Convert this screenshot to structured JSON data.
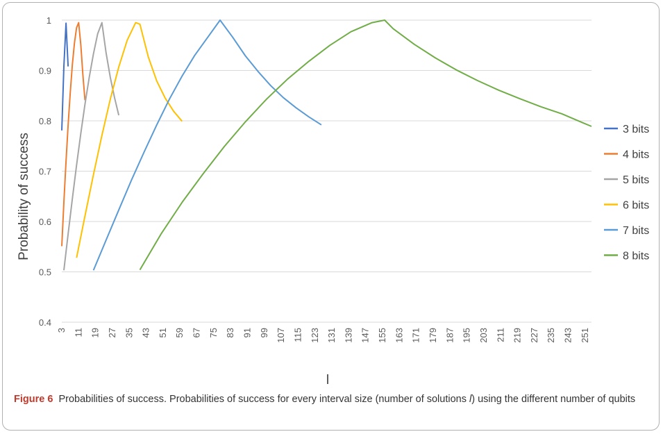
{
  "chart_data": {
    "type": "line",
    "xlabel": "l",
    "ylabel": "Probability of success",
    "ylim": [
      0.4,
      1.0
    ],
    "yticks": [
      0.4,
      0.5,
      0.6,
      0.7,
      0.8,
      0.9,
      1
    ],
    "xlim": [
      3,
      254
    ],
    "xticks": [
      3,
      11,
      19,
      27,
      35,
      43,
      51,
      59,
      67,
      75,
      83,
      91,
      99,
      107,
      115,
      123,
      131,
      139,
      147,
      155,
      163,
      171,
      179,
      187,
      195,
      203,
      211,
      219,
      227,
      235,
      243,
      251
    ],
    "grid": true,
    "legend_position": "right",
    "series": [
      {
        "name": "3 bits",
        "color": "#4472C4",
        "x": [
          3,
          4,
          5,
          6
        ],
        "y": [
          0.781,
          0.908,
          0.994,
          0.908
        ]
      },
      {
        "name": "4 bits",
        "color": "#ED7D31",
        "x": [
          3,
          4,
          5,
          6,
          7,
          8,
          9,
          10,
          11,
          12,
          13,
          14
        ],
        "y": [
          0.551,
          0.638,
          0.719,
          0.791,
          0.856,
          0.911,
          0.954,
          0.985,
          0.995,
          0.951,
          0.891,
          0.841
        ]
      },
      {
        "name": "5 bits",
        "color": "#A5A5A5",
        "x": [
          4,
          6,
          8,
          10,
          12,
          14,
          16,
          18,
          20,
          22,
          24,
          26,
          28,
          30
        ],
        "y": [
          0.503,
          0.575,
          0.645,
          0.712,
          0.775,
          0.833,
          0.886,
          0.933,
          0.973,
          0.995,
          0.935,
          0.886,
          0.846,
          0.811
        ]
      },
      {
        "name": "6 bits",
        "color": "#FFC000",
        "x": [
          10,
          14,
          18,
          22,
          26,
          30,
          34,
          38,
          40,
          44,
          48,
          52,
          56,
          60
        ],
        "y": [
          0.528,
          0.611,
          0.693,
          0.771,
          0.843,
          0.907,
          0.96,
          0.995,
          0.992,
          0.927,
          0.879,
          0.845,
          0.819,
          0.799
        ]
      },
      {
        "name": "7 bits",
        "color": "#5B9BD5",
        "x": [
          18,
          24,
          30,
          36,
          42,
          48,
          54,
          60,
          66,
          72,
          78,
          84,
          90,
          96,
          102,
          108,
          114,
          120,
          126
        ],
        "y": [
          0.503,
          0.563,
          0.623,
          0.682,
          0.738,
          0.792,
          0.843,
          0.889,
          0.93,
          0.965,
          1.0,
          0.966,
          0.929,
          0.898,
          0.87,
          0.846,
          0.826,
          0.808,
          0.792
        ]
      },
      {
        "name": "8 bits",
        "color": "#70AD47",
        "x": [
          40,
          50,
          60,
          70,
          80,
          90,
          100,
          110,
          120,
          130,
          140,
          150,
          156,
          160,
          170,
          180,
          190,
          200,
          210,
          220,
          230,
          240,
          250,
          254
        ],
        "y": [
          0.504,
          0.575,
          0.638,
          0.695,
          0.749,
          0.798,
          0.843,
          0.883,
          0.918,
          0.95,
          0.977,
          0.995,
          1.0,
          0.983,
          0.952,
          0.925,
          0.901,
          0.88,
          0.861,
          0.844,
          0.828,
          0.814,
          0.796,
          0.789
        ]
      }
    ]
  },
  "caption": {
    "label": "Figure 6",
    "text": "Probabilities of success. Probabilities of success for every interval size (number of solutions ",
    "italic": "l",
    "tail": ") using the different number of qubits"
  }
}
